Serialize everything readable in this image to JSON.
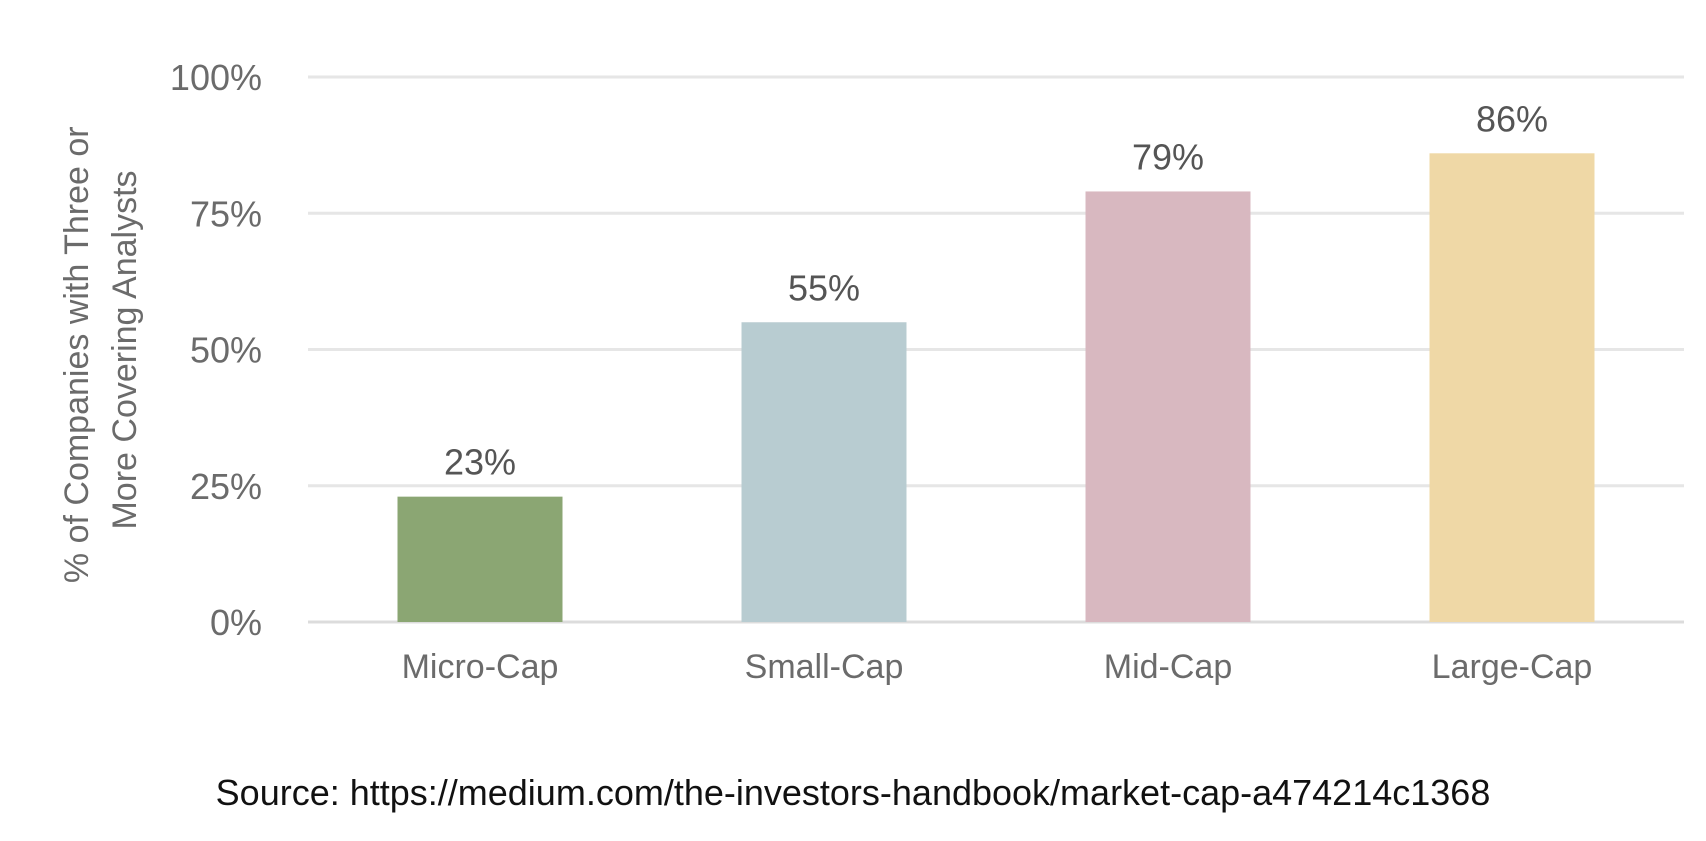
{
  "chart_data": {
    "type": "bar",
    "title": "",
    "xlabel": "",
    "ylabel": [
      "% of Companies with Three or",
      "More Covering Analysts"
    ],
    "categories": [
      "Micro-Cap",
      "Small-Cap",
      "Mid-Cap",
      "Large-Cap"
    ],
    "values": [
      23,
      55,
      79,
      86
    ],
    "data_labels": [
      "23%",
      "55%",
      "79%",
      "86%"
    ],
    "colors": [
      "#8ba673",
      "#b8ccd1",
      "#d8b8c0",
      "#efd8a6"
    ],
    "ylim": [
      0,
      100
    ],
    "yticks": [
      0,
      25,
      50,
      75,
      100
    ],
    "ytick_labels": [
      "0%",
      "25%",
      "50%",
      "75%",
      "100%"
    ],
    "grid": true,
    "legend": "none"
  },
  "source": "Source: https://medium.com/the-investors-handbook/market-cap-a474214c1368"
}
